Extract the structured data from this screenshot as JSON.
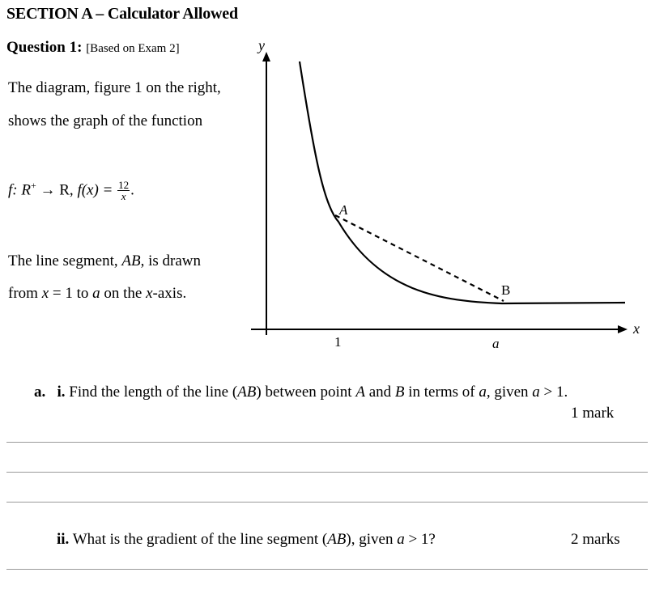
{
  "section_title": "SECTION A – Calculator Allowed",
  "question": {
    "label": "Question 1:",
    "source_note": "[Based on Exam 2]"
  },
  "intro": {
    "line1": "The diagram, figure 1 on the right,",
    "line2": "shows the graph of the function"
  },
  "function_def": {
    "prefix": "f: R",
    "sup": "+",
    "arrow": " → R, ",
    "fx": "f(x) = ",
    "numerator": "12",
    "denominator": "x",
    "suffix": "."
  },
  "segment_text": {
    "line1_a": "The line segment, ",
    "line1_var": "AB",
    "line1_b": ", is drawn",
    "line2_a": "from ",
    "line2_var": "x",
    "line2_b": " = 1 to ",
    "line2_var2": "a",
    "line2_c": " on the ",
    "line2_var3": "x",
    "line2_d": "-axis."
  },
  "graph": {
    "y_axis_label": "y",
    "x_axis_label": "x",
    "point_a_label": "A",
    "point_b_label": "B",
    "tick_1_label": "1",
    "tick_a_label": "a"
  },
  "part_a_i": {
    "part_label": "a.",
    "sub_label": "i.",
    "text_1": " Find the length of the line (",
    "var_ab": "AB",
    "text_2": ") between point ",
    "var_a": "A",
    "text_3": " and ",
    "var_b": "B",
    "text_4": " in terms of ",
    "var_a2": "a",
    "text_5": ", given ",
    "var_a3": "a",
    "text_6": " > 1.",
    "marks": "1 mark"
  },
  "part_a_ii": {
    "sub_label": "ii.",
    "text_1": " What is the gradient of the line segment (",
    "var_ab": "AB",
    "text_2": "), given ",
    "var_a": "a",
    "text_3": " > 1?",
    "marks": "2 marks"
  }
}
